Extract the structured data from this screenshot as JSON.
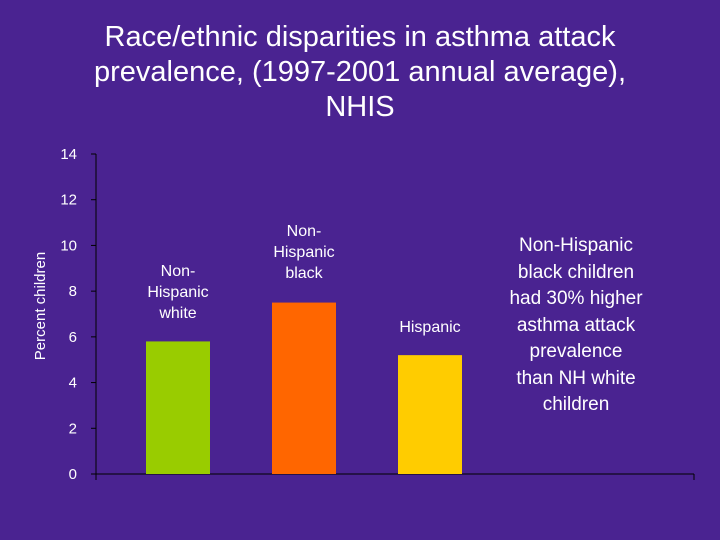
{
  "chart_data": {
    "type": "bar",
    "title_lines": [
      "Race/ethnic disparities in asthma attack",
      "prevalence, (1997-2001 annual average),",
      "NHIS"
    ],
    "ylabel": "Percent children",
    "xlabel": "",
    "ylim": [
      0,
      14
    ],
    "yticks": [
      0,
      2,
      4,
      6,
      8,
      10,
      12,
      14
    ],
    "grid": false,
    "categories": [
      "Non-Hispanic white",
      "Non-Hispanic black",
      "Hispanic"
    ],
    "category_label_lines": [
      [
        "Non-",
        "Hispanic",
        "white"
      ],
      [
        "Non-",
        "Hispanic",
        "black"
      ],
      [
        "Hispanic"
      ]
    ],
    "values": [
      5.8,
      7.5,
      5.2
    ],
    "colors": [
      "#99cc00",
      "#ff6600",
      "#ffcc00"
    ]
  },
  "annotation": {
    "lines": [
      "Non-Hispanic",
      "black children",
      "had 30% higher",
      "asthma attack",
      "prevalence",
      "than NH white",
      "children"
    ]
  }
}
